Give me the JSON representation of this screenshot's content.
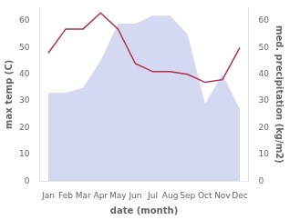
{
  "chart_data": {
    "type": "line",
    "xlabel": "date (month)",
    "ylabel": "max temp (C)",
    "y2label": "med. precipitation (kg/m2)",
    "categories": [
      "Jan",
      "Feb",
      "Mar",
      "Apr",
      "May",
      "Jun",
      "Jul",
      "Aug",
      "Sep",
      "Oct",
      "Nov",
      "Dec"
    ],
    "series": [
      {
        "type": "area",
        "axis": "y2",
        "color": "#b8c0e8",
        "values": [
          33,
          33,
          35,
          45,
          59,
          59,
          62,
          62,
          55,
          29,
          40,
          27
        ]
      },
      {
        "type": "line",
        "axis": "y",
        "color": "#b03050",
        "values": [
          48,
          57,
          57,
          63,
          57,
          44,
          41,
          41,
          40,
          37,
          38,
          50
        ]
      }
    ],
    "ylim": [
      0,
      65
    ],
    "yticks": [
      0,
      10,
      20,
      30,
      40,
      50,
      60
    ],
    "y2lim": [
      0,
      65
    ],
    "y2ticks": [
      0,
      10,
      20,
      30,
      40,
      50,
      60
    ],
    "grid": false
  }
}
